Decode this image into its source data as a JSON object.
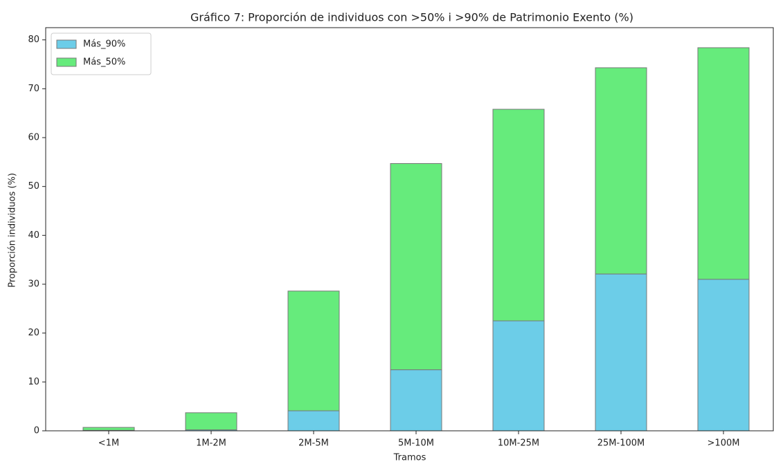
{
  "chart_data": {
    "type": "stacked_bar",
    "title": "Gráfico 7: Proporción de individuos con >50% i >90% de Patrimonio Exento (%)",
    "x_label": "Tramos",
    "y_label": "Proporción individuos (%)",
    "categories": [
      "<1M",
      "1M-2M",
      "2M-5M",
      "5M-10M",
      "10M-25M",
      "25M-100M",
      ">100M"
    ],
    "series": [
      {
        "name": "Más_90%",
        "color": "#6ccde8",
        "values": [
          0.1,
          0.2,
          4.1,
          12.5,
          22.5,
          32.1,
          31.0
        ]
      },
      {
        "name": "Más_50%",
        "color": "#66eb7c",
        "values": [
          0.6,
          3.5,
          24.5,
          42.2,
          43.3,
          42.2,
          47.4
        ]
      }
    ],
    "ylim": [
      0,
      82.5
    ],
    "yticks": [
      0,
      10,
      20,
      30,
      40,
      50,
      60,
      70,
      80
    ],
    "legend": "upper-left"
  }
}
